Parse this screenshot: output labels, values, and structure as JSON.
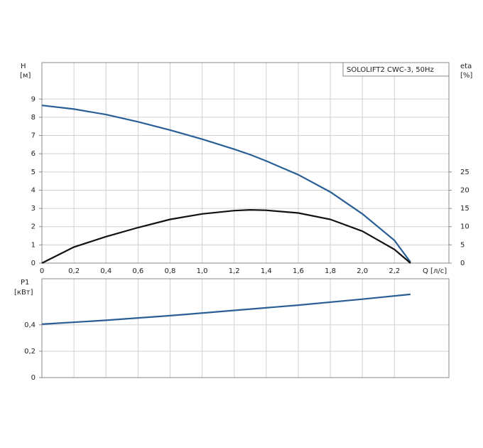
{
  "chart_data": [
    {
      "type": "line",
      "legend_text": "SOLOLIFT2 CWC-3, 50Hz",
      "ylabel": "H",
      "yunit": "[м]",
      "y2label": "eta",
      "y2unit": "[%]",
      "xlabel": "Q [л/с]",
      "x": [
        0,
        0.2,
        0.4,
        0.6,
        0.8,
        1.0,
        1.2,
        1.3,
        1.4,
        1.6,
        1.8,
        2.0,
        2.2,
        2.3
      ],
      "series": [
        {
          "color": "#2a5f96",
          "axis": "y",
          "values": [
            8.65,
            8.45,
            8.15,
            7.75,
            7.3,
            6.8,
            6.25,
            5.95,
            5.6,
            4.85,
            3.9,
            2.7,
            1.25,
            0.05
          ]
        },
        {
          "color": "#111111",
          "axis": "y2",
          "values": [
            0,
            4.4,
            7.25,
            9.75,
            12,
            13.5,
            14.4,
            14.6,
            14.5,
            13.75,
            12,
            8.75,
            3.75,
            0
          ]
        }
      ],
      "xlim": [
        0,
        2.54
      ],
      "xticks": [
        0,
        {
          "value": 0.2,
          "label": "0,2"
        },
        {
          "value": 0.4,
          "label": "0,4"
        },
        {
          "value": 0.6,
          "label": "0,6"
        },
        {
          "value": 0.8,
          "label": "0,8"
        },
        {
          "value": 1.0,
          "label": "1,0"
        },
        {
          "value": 1.2,
          "label": "1,2"
        },
        {
          "value": 1.4,
          "label": "1,4"
        },
        {
          "value": 1.6,
          "label": "1,6"
        },
        {
          "value": 1.8,
          "label": "1,8"
        },
        {
          "value": 2.0,
          "label": "2,0"
        },
        {
          "value": 2.2,
          "label": "2,2"
        }
      ],
      "ylim": [
        0,
        11
      ],
      "yticks": [
        0,
        1,
        2,
        3,
        4,
        5,
        6,
        7,
        8,
        9
      ],
      "y2lim": [
        0,
        55
      ],
      "y2ticks": [
        0,
        5,
        10,
        15,
        20,
        25
      ],
      "grid": true
    },
    {
      "type": "line",
      "ylabel": "P1",
      "yunit": "[кВт]",
      "x": [
        0,
        0.4,
        0.8,
        1.2,
        1.6,
        2.0,
        2.3
      ],
      "series": [
        {
          "color": "#2a5f96",
          "axis": "y",
          "values": [
            0.405,
            0.435,
            0.47,
            0.51,
            0.55,
            0.595,
            0.632
          ]
        }
      ],
      "xlim": [
        0,
        2.54
      ],
      "xticks": [
        0,
        0.2,
        0.4,
        0.6,
        0.8,
        1.0,
        1.2,
        1.4,
        1.6,
        1.8,
        2.0,
        2.2
      ],
      "ylim": [
        0,
        0.75
      ],
      "yticks": [
        0,
        {
          "value": 0.2,
          "label": "0,2"
        },
        {
          "value": 0.4,
          "label": "0,4"
        }
      ],
      "grid": true
    }
  ]
}
